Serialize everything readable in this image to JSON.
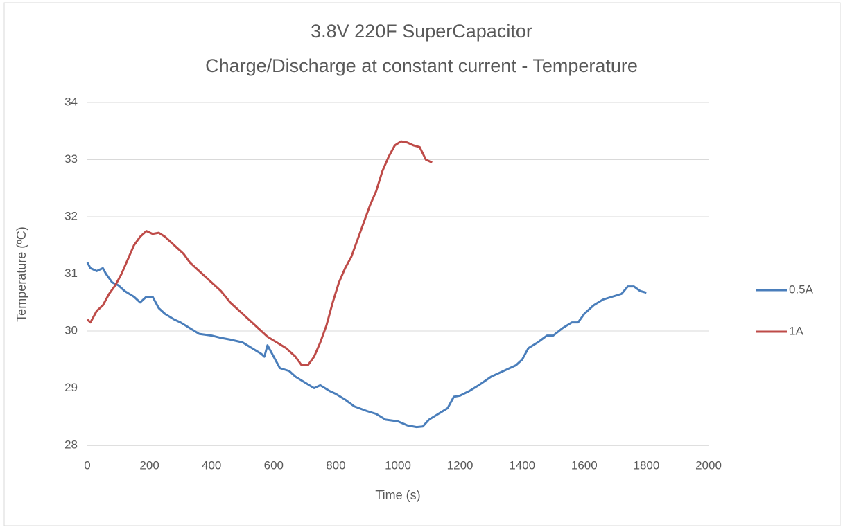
{
  "chart_data": {
    "type": "line",
    "title": "3.8V 220F SuperCapacitor",
    "subtitle": "Charge/Discharge at constant current - Temperature",
    "x_label": "Time (s)",
    "y_label": "Temperature (ºC)",
    "xlim": [
      0,
      2000
    ],
    "xticks": [
      0,
      200,
      400,
      600,
      800,
      1000,
      1200,
      1400,
      1600,
      1800,
      2000
    ],
    "ylim": [
      28,
      34
    ],
    "yticks": [
      28,
      29,
      30,
      31,
      32,
      33,
      34
    ],
    "grid": true,
    "legend": "right",
    "series": [
      {
        "name": "0.5A",
        "color": "#4a7ebb",
        "x": [
          0,
          10,
          30,
          50,
          60,
          80,
          100,
          120,
          150,
          170,
          190,
          210,
          230,
          250,
          280,
          300,
          330,
          360,
          400,
          430,
          460,
          500,
          530,
          560,
          570,
          580,
          600,
          620,
          650,
          670,
          700,
          730,
          750,
          780,
          800,
          830,
          860,
          900,
          930,
          960,
          1000,
          1030,
          1060,
          1080,
          1100,
          1130,
          1160,
          1180,
          1200,
          1230,
          1260,
          1300,
          1340,
          1380,
          1400,
          1420,
          1450,
          1480,
          1500,
          1530,
          1560,
          1580,
          1600,
          1630,
          1660,
          1690,
          1720,
          1740,
          1760,
          1780,
          1800
        ],
        "values": [
          31.2,
          31.1,
          31.05,
          31.1,
          31.0,
          30.85,
          30.8,
          30.7,
          30.6,
          30.5,
          30.6,
          30.6,
          30.4,
          30.3,
          30.2,
          30.15,
          30.05,
          29.95,
          29.92,
          29.88,
          29.85,
          29.8,
          29.7,
          29.6,
          29.55,
          29.75,
          29.55,
          29.35,
          29.3,
          29.2,
          29.1,
          29.0,
          29.05,
          28.95,
          28.9,
          28.8,
          28.68,
          28.6,
          28.55,
          28.45,
          28.42,
          28.35,
          28.32,
          28.33,
          28.45,
          28.55,
          28.65,
          28.85,
          28.87,
          28.95,
          29.05,
          29.2,
          29.3,
          29.4,
          29.5,
          29.7,
          29.8,
          29.92,
          29.92,
          30.05,
          30.15,
          30.15,
          30.3,
          30.45,
          30.55,
          30.6,
          30.65,
          30.78,
          30.78,
          30.7,
          30.67
        ]
      },
      {
        "name": "1A",
        "color": "#be4b48",
        "x": [
          0,
          10,
          30,
          50,
          70,
          90,
          110,
          130,
          150,
          170,
          190,
          210,
          230,
          250,
          270,
          290,
          310,
          330,
          360,
          390,
          410,
          430,
          460,
          490,
          520,
          550,
          580,
          610,
          640,
          670,
          690,
          710,
          730,
          750,
          770,
          790,
          810,
          830,
          850,
          870,
          890,
          910,
          930,
          950,
          970,
          990,
          1010,
          1030,
          1050,
          1070,
          1090,
          1110
        ],
        "values": [
          30.2,
          30.15,
          30.35,
          30.45,
          30.65,
          30.8,
          31.0,
          31.25,
          31.5,
          31.65,
          31.75,
          31.7,
          31.72,
          31.65,
          31.55,
          31.45,
          31.35,
          31.2,
          31.05,
          30.9,
          30.8,
          30.7,
          30.5,
          30.35,
          30.2,
          30.05,
          29.9,
          29.8,
          29.7,
          29.55,
          29.4,
          29.4,
          29.55,
          29.8,
          30.1,
          30.5,
          30.85,
          31.1,
          31.3,
          31.6,
          31.9,
          32.2,
          32.45,
          32.8,
          33.05,
          33.25,
          33.32,
          33.3,
          33.25,
          33.22,
          33.0,
          32.95
        ]
      }
    ]
  }
}
